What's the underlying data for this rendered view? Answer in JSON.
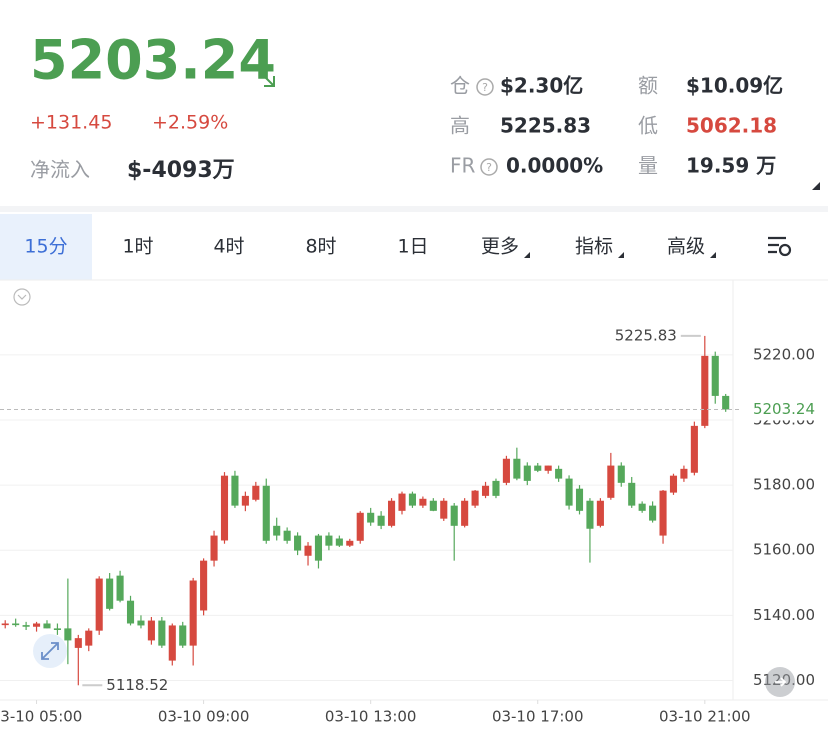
{
  "header": {
    "change": "+131.45",
    "change_pct": "+2.59%",
    "net_inflow_label": "净流入",
    "net_inflow": "$-4093万",
    "stats": [
      {
        "label": "仓",
        "value": "$2.30亿"
      },
      {
        "label": "额",
        "value": "$10.09亿"
      },
      {
        "label": "高",
        "value": "5225.83"
      },
      {
        "label": "低",
        "value": "5062.18"
      },
      {
        "label": "FR",
        "value": "0.0000%"
      },
      {
        "label": "量",
        "value": "19.59 万"
      }
    ]
  },
  "tabs": [
    "15分",
    "1时",
    "4时",
    "8时",
    "1日",
    "更多",
    "指标",
    "高级"
  ],
  "chart_data": {
    "type": "candlestick",
    "up_color": "#d6493f",
    "down_color": "#55a85b",
    "open": [
      5137.0,
      5137.5,
      5137.0,
      5136.5,
      5137.5,
      5136.0,
      5136.0,
      5130.0,
      5130.7,
      5135.3,
      5151.3,
      5152.2,
      5144.5,
      5138.4,
      5132.3,
      5138.4,
      5126.1,
      5136.9,
      5130.7,
      5141.5,
      5156.8,
      5163.0,
      5182.9,
      5173.7,
      5175.5,
      5179.8,
      5167.5,
      5166.0,
      5164.5,
      5158.3,
      5164.5,
      5164.5,
      5163.6,
      5161.4,
      5162.9,
      5171.5,
      5170.6,
      5167.5,
      5172.1,
      5177.4,
      5173.7,
      5175.2,
      5169.7,
      5173.7,
      5167.5,
      5173.7,
      5176.7,
      5181.3,
      5180.7,
      5188.1,
      5186.0,
      5186.0,
      5184.4,
      5185.0,
      5182.0,
      5178.9,
      5175.2,
      5167.5,
      5176.1,
      5186.0,
      5180.7,
      5174.3,
      5173.7,
      5164.5,
      5177.7,
      5182.0,
      5183.8,
      5198.2,
      5219.7,
      5207.4
    ],
    "high": [
      5138.5,
      5139.0,
      5138.0,
      5138.0,
      5138.5,
      5137.5,
      5151.3,
      5134.0,
      5136.0,
      5152.0,
      5153.0,
      5153.7,
      5146.0,
      5140.0,
      5139.5,
      5139.5,
      5137.5,
      5138.0,
      5151.5,
      5157.5,
      5166.0,
      5184.0,
      5184.4,
      5178.0,
      5181.0,
      5182.0,
      5170.0,
      5167.0,
      5165.5,
      5162.5,
      5165.0,
      5165.5,
      5164.5,
      5163.5,
      5172.0,
      5173.0,
      5172.0,
      5176.0,
      5178.0,
      5178.0,
      5176.5,
      5176.0,
      5176.0,
      5174.5,
      5176.0,
      5178.5,
      5181.0,
      5182.0,
      5189.0,
      5191.5,
      5187.0,
      5186.8,
      5186.0,
      5186.0,
      5183.0,
      5180.0,
      5176.0,
      5176.0,
      5189.9,
      5187.0,
      5182.5,
      5175.0,
      5175.0,
      5178.5,
      5183.5,
      5186.0,
      5199.5,
      5225.83,
      5221.0,
      5208.0
    ],
    "low": [
      5136.0,
      5136.5,
      5135.5,
      5135.0,
      5136.0,
      5134.0,
      5125.0,
      5118.52,
      5129.0,
      5134.0,
      5141.5,
      5144.0,
      5136.9,
      5136.0,
      5131.0,
      5130.0,
      5124.6,
      5130.0,
      5124.6,
      5140.0,
      5155.0,
      5162.0,
      5173.0,
      5172.0,
      5175.0,
      5162.0,
      5163.0,
      5162.0,
      5158.5,
      5155.3,
      5154.4,
      5160.0,
      5161.0,
      5161.0,
      5162.0,
      5167.5,
      5166.5,
      5167.0,
      5171.0,
      5173.0,
      5173.0,
      5172.0,
      5169.0,
      5156.8,
      5167.0,
      5173.0,
      5176.0,
      5176.0,
      5180.0,
      5181.5,
      5180.0,
      5184.0,
      5183.5,
      5181.0,
      5172.5,
      5171.0,
      5156.2,
      5167.0,
      5175.5,
      5179.5,
      5173.0,
      5171.5,
      5168.5,
      5162.0,
      5177.0,
      5181.0,
      5183.0,
      5197.5,
      5205.0,
      5202.5
    ],
    "close": [
      5137.5,
      5137.0,
      5136.5,
      5137.5,
      5136.0,
      5135.5,
      5132.3,
      5133.0,
      5135.3,
      5151.3,
      5142.0,
      5144.5,
      5137.5,
      5136.9,
      5138.4,
      5130.7,
      5136.9,
      5130.7,
      5150.7,
      5156.8,
      5164.5,
      5182.9,
      5173.7,
      5176.7,
      5179.8,
      5162.9,
      5164.5,
      5162.9,
      5159.9,
      5161.4,
      5156.8,
      5161.4,
      5161.4,
      5162.9,
      5171.5,
      5168.5,
      5167.5,
      5175.2,
      5177.4,
      5173.7,
      5175.8,
      5172.1,
      5175.2,
      5167.5,
      5175.2,
      5178.3,
      5179.8,
      5176.7,
      5188.1,
      5182.0,
      5181.3,
      5184.4,
      5186.0,
      5182.0,
      5173.7,
      5172.1,
      5166.6,
      5175.2,
      5186.0,
      5180.7,
      5173.7,
      5172.1,
      5169.1,
      5178.3,
      5182.9,
      5185.0,
      5198.2,
      5219.7,
      5207.4,
      5203.24
    ],
    "xlim": [
      -0.5,
      69.7
    ],
    "xticks": [
      {
        "value": 3,
        "label": "03-10 05:00"
      },
      {
        "value": 19,
        "label": "03-10 09:00"
      },
      {
        "value": 35,
        "label": "03-10 13:00"
      },
      {
        "value": 51,
        "label": "03-10 17:00"
      },
      {
        "value": 67,
        "label": "03-10 21:00"
      }
    ],
    "ylim": [
      5114,
      5243
    ],
    "yticks": [
      {
        "value": 5120,
        "label": "5120.00"
      },
      {
        "value": 5140,
        "label": "5140.00"
      },
      {
        "value": 5160,
        "label": "5160.00"
      },
      {
        "value": 5180,
        "label": "5180.00"
      },
      {
        "value": 5200,
        "label": "5200.00"
      },
      {
        "value": 5220,
        "label": "5220.00"
      }
    ],
    "grid": true
  }
}
